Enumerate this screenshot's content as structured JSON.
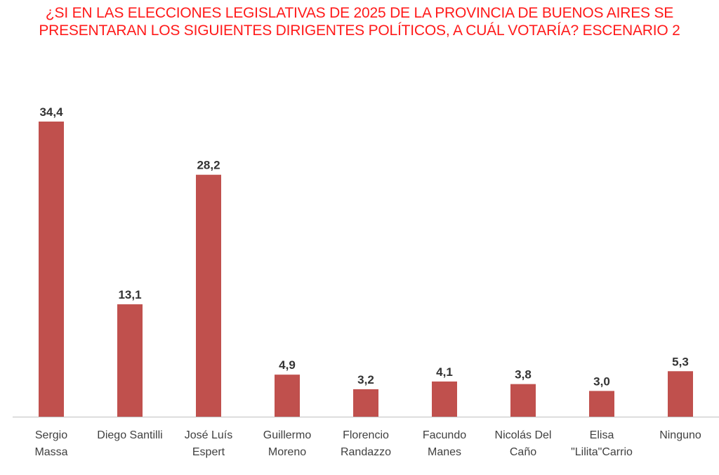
{
  "title_lines": [
    "¿SI EN LAS ELECCIONES LEGISLATIVAS DE 2025 DE LA PROVINCIA DE BUENOS AIRES SE",
    "PRESENTARAN LOS SIGUIENTES DIRIGENTES POLÍTICOS, A CUÁL VOTARÍA? ESCENARIO 2"
  ],
  "colors": {
    "title": "#ff1a1a",
    "bar": "#c0504d",
    "axis": "#bfbfbf"
  },
  "chart_data": {
    "type": "bar",
    "title": "¿SI EN LAS ELECCIONES LEGISLATIVAS DE 2025 DE LA PROVINCIA DE BUENOS AIRES SE PRESENTARAN LOS SIGUIENTES DIRIGENTES POLÍTICOS, A CUÁL VOTARÍA? ESCENARIO 2",
    "categories": [
      [
        "Sergio",
        "Massa"
      ],
      [
        "Diego Santilli"
      ],
      [
        "José Luís",
        "Espert"
      ],
      [
        "Guillermo",
        "Moreno"
      ],
      [
        "Florencio",
        "Randazzo"
      ],
      [
        "Facundo",
        "Manes"
      ],
      [
        "Nicolás Del",
        "Caño"
      ],
      [
        "Elisa",
        "\"Lilita\"Carrio"
      ],
      [
        "Ninguno"
      ]
    ],
    "values": [
      34.4,
      13.1,
      28.2,
      4.9,
      3.2,
      4.1,
      3.8,
      3.0,
      5.3
    ],
    "value_labels": [
      "34,4",
      "13,1",
      "28,2",
      "4,9",
      "3,2",
      "4,1",
      "3,8",
      "3,0",
      "5,3"
    ],
    "xlabel": "",
    "ylabel": "",
    "ylim": [
      0,
      35
    ],
    "grid": false,
    "legend": "none"
  }
}
